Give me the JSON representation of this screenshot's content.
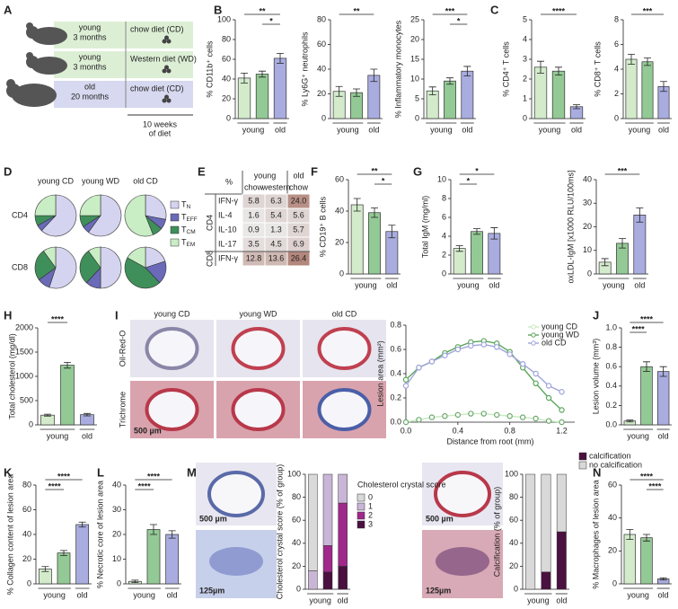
{
  "panel_letters": [
    "A",
    "B",
    "C",
    "D",
    "E",
    "F",
    "G",
    "H",
    "I",
    "J",
    "K",
    "L",
    "M",
    "N"
  ],
  "schematic": {
    "groups": [
      {
        "age": "young",
        "duration": "3 months",
        "diet": "chow diet (CD)"
      },
      {
        "age": "young",
        "duration": "3 months",
        "diet": "Western diet (WD)"
      },
      {
        "age": "old",
        "duration": "20 months",
        "diet": "chow diet (CD)"
      }
    ],
    "note": [
      "10 weeks",
      "of diet"
    ]
  },
  "table": {
    "corner": "%",
    "col_groups": [
      "young",
      "old"
    ],
    "columns": [
      "chow",
      "western",
      "chow"
    ],
    "row_groups": [
      "CD4",
      "CD8"
    ],
    "rows": [
      {
        "label": "IFN-γ",
        "cells": [
          "5.8",
          "6.3",
          "24.0"
        ]
      },
      {
        "label": "IL-4",
        "cells": [
          "1.6",
          "5.4",
          "5.6"
        ]
      },
      {
        "label": "IL-10",
        "cells": [
          "0.9",
          "1.3",
          "5.7"
        ]
      },
      {
        "label": "IL-17",
        "cells": [
          "3.5",
          "4.5",
          "6.9"
        ]
      },
      {
        "label": "IFN-γ",
        "cells": [
          "12.8",
          "13.6",
          "26.4"
        ]
      }
    ]
  },
  "histology": {
    "columns": [
      "young CD",
      "young WD",
      "old CD"
    ],
    "rows": [
      "Oil-Red-O",
      "Trichrome"
    ],
    "scale_bar": "500 µm"
  },
  "m_images": {
    "left": [
      "500 µm",
      "125µm"
    ],
    "right": [
      "500 µm",
      "125µm"
    ]
  },
  "chart_data": [
    {
      "type": "bar",
      "ylabel": "% CD11b⁺ cells",
      "values": [
        41,
        45,
        61
      ],
      "errors": [
        5,
        3,
        5
      ],
      "colors": [
        "#d3ebcb",
        "#93c995",
        "#a9acdf"
      ],
      "group_labels": [
        "young",
        "old"
      ],
      "ylim": [
        0,
        100
      ],
      "yticks": [
        0,
        20,
        40,
        60,
        80,
        100
      ],
      "significance": [
        {
          "bars": [
            0,
            2
          ],
          "label": "**"
        },
        {
          "bars": [
            1,
            2
          ],
          "label": "*"
        }
      ]
    },
    {
      "type": "bar",
      "ylabel": "% Ly6G⁺ neutrophils",
      "values": [
        22,
        21,
        35
      ],
      "errors": [
        4,
        3,
        5
      ],
      "colors": [
        "#d3ebcb",
        "#93c995",
        "#a9acdf"
      ],
      "group_labels": [
        "young",
        "old"
      ],
      "ylim": [
        0,
        80
      ],
      "yticks": [
        0,
        20,
        40,
        60,
        80
      ],
      "significance": [
        {
          "bars": [
            0,
            2
          ],
          "label": "**"
        }
      ]
    },
    {
      "type": "bar",
      "ylabel": "% Inflammatory monocytes",
      "values": [
        7,
        9.5,
        12
      ],
      "errors": [
        1,
        0.8,
        1.2
      ],
      "colors": [
        "#d3ebcb",
        "#93c995",
        "#a9acdf"
      ],
      "group_labels": [
        "young",
        "old"
      ],
      "ylim": [
        0,
        25
      ],
      "yticks": [
        0,
        5,
        10,
        15,
        20,
        25
      ],
      "significance": [
        {
          "bars": [
            0,
            2
          ],
          "label": "***"
        },
        {
          "bars": [
            1,
            2
          ],
          "label": "*"
        }
      ]
    },
    {
      "type": "bar",
      "ylabel": "% CD4⁺ T cells",
      "values": [
        2.6,
        2.4,
        0.6
      ],
      "errors": [
        0.3,
        0.2,
        0.1
      ],
      "colors": [
        "#d3ebcb",
        "#93c995",
        "#a9acdf"
      ],
      "group_labels": [
        "young",
        "old"
      ],
      "ylim": [
        0,
        5
      ],
      "yticks": [
        0,
        1,
        2,
        3,
        4,
        5
      ],
      "significance": [
        {
          "bars": [
            0,
            2
          ],
          "label": "****"
        }
      ]
    },
    {
      "type": "bar",
      "ylabel": "% CD8⁺ T cells",
      "values": [
        4.8,
        4.6,
        2.6
      ],
      "errors": [
        0.4,
        0.3,
        0.4
      ],
      "colors": [
        "#d3ebcb",
        "#93c995",
        "#a9acdf"
      ],
      "group_labels": [
        "young",
        "old"
      ],
      "ylim": [
        0,
        8
      ],
      "yticks": [
        0,
        2,
        4,
        6,
        8
      ],
      "significance": [
        {
          "bars": [
            0,
            2
          ],
          "label": "***"
        }
      ]
    },
    {
      "type": "pie",
      "columns": [
        "young CD",
        "young WD",
        "old CD"
      ],
      "rows": [
        "CD4",
        "CD8"
      ],
      "series": [
        {
          "name": "TN",
          "color": "#d4d4f0",
          "values": [
            62,
            60,
            28,
            55,
            50,
            20
          ]
        },
        {
          "name": "TEFF",
          "color": "#6a6ab8",
          "values": [
            5,
            6,
            8,
            10,
            12,
            18
          ]
        },
        {
          "name": "TCM",
          "color": "#3f8f5a",
          "values": [
            8,
            9,
            8,
            25,
            28,
            45
          ]
        },
        {
          "name": "TEM",
          "color": "#c9edc4",
          "values": [
            25,
            25,
            56,
            10,
            10,
            17
          ]
        }
      ]
    },
    {
      "type": "bar",
      "ylabel": "% CD19⁺ B cells",
      "values": [
        44,
        39,
        27
      ],
      "errors": [
        4,
        3,
        4
      ],
      "colors": [
        "#d3ebcb",
        "#93c995",
        "#a9acdf"
      ],
      "group_labels": [
        "young",
        "old"
      ],
      "ylim": [
        0,
        60
      ],
      "yticks": [
        0,
        20,
        40,
        60
      ],
      "significance": [
        {
          "bars": [
            0,
            2
          ],
          "label": "**"
        },
        {
          "bars": [
            1,
            2
          ],
          "label": "*"
        }
      ]
    },
    {
      "type": "bar",
      "ylabel": "Total IgM (mg/ml)",
      "values": [
        2.7,
        4.5,
        4.3
      ],
      "errors": [
        0.3,
        0.3,
        0.6
      ],
      "colors": [
        "#d3ebcb",
        "#93c995",
        "#a9acdf"
      ],
      "group_labels": [
        "young",
        "old"
      ],
      "ylim": [
        0,
        10
      ],
      "yticks": [
        0,
        2,
        4,
        6,
        8,
        10
      ],
      "significance": [
        {
          "bars": [
            0,
            2
          ],
          "label": "*"
        },
        {
          "bars": [
            0,
            1
          ],
          "label": "*"
        }
      ]
    },
    {
      "type": "bar",
      "ylabel": "oxLDL-IgM [x1000 RLU/100ms]",
      "values": [
        5,
        13,
        25
      ],
      "errors": [
        1.5,
        2,
        3
      ],
      "colors": [
        "#d3ebcb",
        "#93c995",
        "#a9acdf"
      ],
      "group_labels": [
        "young",
        "old"
      ],
      "ylim": [
        0,
        40
      ],
      "yticks": [
        0,
        10,
        20,
        30,
        40
      ],
      "significance": [
        {
          "bars": [
            0,
            2
          ],
          "label": "***"
        }
      ]
    },
    {
      "type": "bar",
      "ylabel": "Total cholesterol (mg/dl)",
      "values": [
        200,
        1230,
        210
      ],
      "errors": [
        20,
        60,
        25
      ],
      "colors": [
        "#d3ebcb",
        "#93c995",
        "#a9acdf"
      ],
      "group_labels": [
        "young",
        "old"
      ],
      "ylim": [
        0,
        2000
      ],
      "yticks": [
        0,
        500,
        1000,
        1500,
        2000
      ],
      "significance": [
        {
          "bars": [
            0,
            1
          ],
          "label": "****"
        }
      ]
    },
    {
      "type": "line",
      "xlabel": "Distance from root (mm)",
      "ylabel": "Lesion area (mm²)",
      "x": [
        0,
        0.1,
        0.2,
        0.3,
        0.4,
        0.5,
        0.6,
        0.7,
        0.8,
        0.9,
        1.0,
        1.1,
        1.2
      ],
      "series": [
        {
          "name": "young CD",
          "color": "#c8eac0",
          "values": [
            0,
            0.02,
            0.04,
            0.05,
            0.06,
            0.07,
            0.07,
            0.06,
            0.05,
            0.04,
            0.03,
            0.01,
            0
          ]
        },
        {
          "name": "young WD",
          "color": "#5ba65b",
          "values": [
            0.35,
            0.45,
            0.5,
            0.57,
            0.62,
            0.66,
            0.67,
            0.65,
            0.58,
            0.45,
            0.32,
            0.2,
            0.1
          ]
        },
        {
          "name": "old CD",
          "color": "#9fa4dc",
          "values": [
            0.3,
            0.45,
            0.5,
            0.55,
            0.6,
            0.63,
            0.64,
            0.62,
            0.56,
            0.48,
            0.4,
            0.3,
            0.25
          ]
        }
      ],
      "xlim": [
        0,
        1.3
      ],
      "xticks": [
        {
          "value": 0,
          "label": "0.0"
        },
        0.4,
        0.8,
        1.2
      ],
      "ylim": [
        0,
        0.8
      ],
      "yticks": [
        {
          "value": 0,
          "label": "0.0"
        },
        0.2,
        0.4,
        0.6,
        0.8
      ]
    },
    {
      "type": "bar",
      "ylabel": "Lesion volume (mm³)",
      "values": [
        0.04,
        0.6,
        0.55
      ],
      "errors": [
        0.01,
        0.05,
        0.05
      ],
      "colors": [
        "#d3ebcb",
        "#93c995",
        "#a9acdf"
      ],
      "group_labels": [
        "young",
        "old"
      ],
      "ylim": [
        0,
        1
      ],
      "yticks": [
        {
          "value": 0,
          "label": "0.0"
        },
        0.2,
        0.4,
        0.6,
        0.8,
        {
          "value": 1,
          "label": "1.0"
        }
      ],
      "significance": [
        {
          "bars": [
            0,
            2
          ],
          "label": "****"
        },
        {
          "bars": [
            0,
            1
          ],
          "label": "****"
        }
      ]
    },
    {
      "type": "bar",
      "ylabel": "% Collagen content of lesion area",
      "values": [
        12,
        25,
        48
      ],
      "errors": [
        2,
        2,
        2
      ],
      "colors": [
        "#d3ebcb",
        "#93c995",
        "#a9acdf"
      ],
      "group_labels": [
        "young",
        "old"
      ],
      "ylim": [
        0,
        80
      ],
      "yticks": [
        0,
        20,
        40,
        60,
        80
      ],
      "significance": [
        {
          "bars": [
            0,
            2
          ],
          "label": "****"
        },
        {
          "bars": [
            0,
            1
          ],
          "label": "****"
        }
      ]
    },
    {
      "type": "bar",
      "ylabel": "% Necrotic core of lesion area",
      "values": [
        1,
        22,
        20
      ],
      "errors": [
        0.5,
        2,
        1.5
      ],
      "colors": [
        "#d3ebcb",
        "#93c995",
        "#a9acdf"
      ],
      "group_labels": [
        "young",
        "old"
      ],
      "ylim": [
        0,
        40
      ],
      "yticks": [
        0,
        10,
        20,
        30,
        40
      ],
      "significance": [
        {
          "bars": [
            0,
            2
          ],
          "label": "****"
        },
        {
          "bars": [
            0,
            1
          ],
          "label": "****"
        }
      ]
    },
    {
      "type": "stacked_bar",
      "ylabel": "Cholesterol crystal score (% of group)",
      "legend_title": "Cholesterol crystal score",
      "group_labels": [
        "young",
        "old"
      ],
      "ylim": [
        0,
        100
      ],
      "yticks": [
        0,
        20,
        40,
        60,
        80,
        100
      ],
      "series": [
        {
          "name": "0",
          "color": "#d9d9d9",
          "values": [
            84,
            0,
            0
          ]
        },
        {
          "name": "1",
          "color": "#c9b6d6",
          "values": [
            16,
            62,
            25
          ]
        },
        {
          "name": "2",
          "color": "#a0288a",
          "values": [
            0,
            23,
            55
          ]
        },
        {
          "name": "3",
          "color": "#4a1040",
          "values": [
            0,
            15,
            20
          ]
        }
      ]
    },
    {
      "type": "stacked_bar",
      "ylabel": "Calcification (% of group)",
      "group_labels": [
        "young",
        "old"
      ],
      "ylim": [
        0,
        100
      ],
      "yticks": [
        0,
        20,
        40,
        60,
        80,
        100
      ],
      "series": [
        {
          "name": "calcification",
          "color": "#4a1040",
          "values": [
            0,
            15,
            50
          ]
        },
        {
          "name": "no calcification",
          "color": "#d9d9d9",
          "values": [
            100,
            85,
            50
          ]
        }
      ]
    },
    {
      "type": "bar",
      "ylabel": "% Macrophages of lesion area",
      "values": [
        30,
        28,
        3
      ],
      "errors": [
        3,
        2,
        0.7
      ],
      "colors": [
        "#d3ebcb",
        "#93c995",
        "#a9acdf"
      ],
      "group_labels": [
        "young",
        "old"
      ],
      "ylim": [
        0,
        60
      ],
      "yticks": [
        0,
        20,
        40,
        60
      ],
      "significance": [
        {
          "bars": [
            0,
            2
          ],
          "label": "****"
        },
        {
          "bars": [
            1,
            2
          ],
          "label": "****"
        }
      ]
    }
  ]
}
